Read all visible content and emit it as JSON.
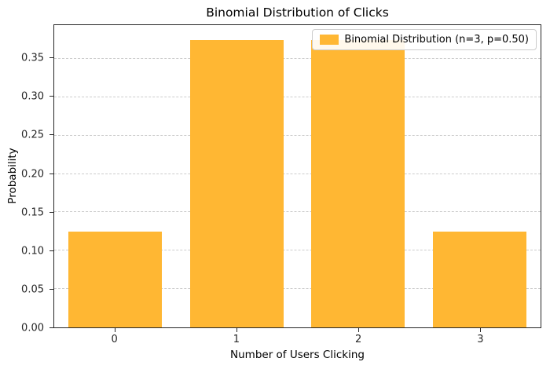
{
  "chart_data": {
    "type": "bar",
    "title": "Binomial Distribution of Clicks",
    "xlabel": "Number of Users Clicking",
    "ylabel": "Probability",
    "categories": [
      "0",
      "1",
      "2",
      "3"
    ],
    "values": [
      0.125,
      0.375,
      0.375,
      0.125
    ],
    "ylim": [
      0,
      0.394
    ],
    "y_ticks": [
      0.0,
      0.05,
      0.1,
      0.15,
      0.2,
      0.25,
      0.3,
      0.35
    ],
    "grid": "horizontal-dashed",
    "legend": {
      "label": "Binomial Distribution (n=3, p=0.50)",
      "position": "upper right"
    },
    "bar_color": "#FFB733",
    "grid_color": "#cccccc"
  }
}
